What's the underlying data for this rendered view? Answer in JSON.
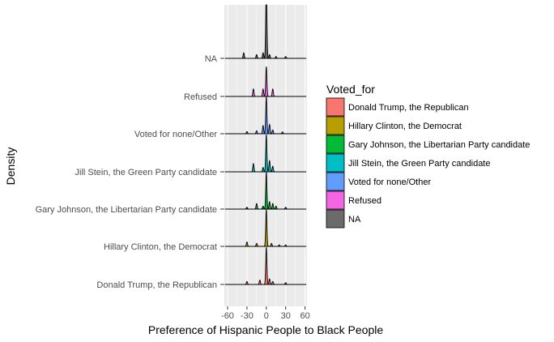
{
  "chart_data": {
    "type": "area",
    "variant": "ridgeline-density",
    "xlabel": "Preference of Hispanic People to Black People",
    "ylabel": "Density",
    "xlim": [
      -65,
      63
    ],
    "x_ticks": [
      -60,
      -30,
      0,
      30,
      60
    ],
    "x_tick_labels": [
      "-60",
      "-30",
      "0",
      "30",
      "60"
    ],
    "grid": true,
    "legend_position": "right",
    "legend": {
      "title": "Voted_for",
      "entries": [
        {
          "label": "Donald Trump, the Republican",
          "color": "#F8766D"
        },
        {
          "label": "Hillary Clinton, the Democrat",
          "color": "#B79F00"
        },
        {
          "label": "Gary Johnson, the Libertarian Party candidate",
          "color": "#00BA38"
        },
        {
          "label": "Jill Stein, the Green Party candidate",
          "color": "#00BFC4"
        },
        {
          "label": "Voted for none/Other",
          "color": "#619CFF"
        },
        {
          "label": "Refused",
          "color": "#F564E3"
        },
        {
          "label": "NA",
          "color": "#6B6B6B"
        }
      ]
    },
    "series": [
      {
        "category": "Donald Trump, the Republican",
        "color": "#F8766D",
        "peaks": [
          [
            -30,
            0.08
          ],
          [
            -10,
            0.12
          ],
          [
            0,
            1.0
          ],
          [
            5,
            0.15
          ],
          [
            10,
            0.08
          ],
          [
            30,
            0.05
          ]
        ]
      },
      {
        "category": "Hillary Clinton, the Democrat",
        "color": "#B79F00",
        "peaks": [
          [
            -30,
            0.12
          ],
          [
            -15,
            0.08
          ],
          [
            0,
            1.0
          ],
          [
            8,
            0.08
          ],
          [
            20,
            0.04
          ],
          [
            30,
            0.04
          ]
        ]
      },
      {
        "category": "Gary Johnson, the Libertarian Party candidate",
        "color": "#00BA38",
        "peaks": [
          [
            -30,
            0.05
          ],
          [
            -15,
            0.15
          ],
          [
            -5,
            0.08
          ],
          [
            0,
            1.0
          ],
          [
            5,
            0.2
          ],
          [
            10,
            0.15
          ],
          [
            15,
            0.08
          ],
          [
            30,
            0.05
          ]
        ]
      },
      {
        "category": "Jill Stein, the Green Party candidate",
        "color": "#00BFC4",
        "peaks": [
          [
            -20,
            0.22
          ],
          [
            -5,
            0.12
          ],
          [
            0,
            1.0
          ],
          [
            5,
            0.3
          ],
          [
            10,
            0.15
          ]
        ]
      },
      {
        "category": "Voted for none/Other",
        "color": "#619CFF",
        "peaks": [
          [
            -30,
            0.06
          ],
          [
            -15,
            0.08
          ],
          [
            -5,
            0.22
          ],
          [
            0,
            1.0
          ],
          [
            5,
            0.25
          ],
          [
            10,
            0.1
          ],
          [
            25,
            0.05
          ]
        ]
      },
      {
        "category": "Refused",
        "color": "#F564E3",
        "peaks": [
          [
            -20,
            0.2
          ],
          [
            -5,
            0.2
          ],
          [
            0,
            0.8
          ],
          [
            10,
            0.2
          ]
        ]
      },
      {
        "category": "NA",
        "color": "#6B6B6B",
        "peaks": [
          [
            -35,
            0.15
          ],
          [
            -15,
            0.1
          ],
          [
            -5,
            0.15
          ],
          [
            0,
            2.0
          ],
          [
            5,
            0.1
          ],
          [
            15,
            0.05
          ],
          [
            30,
            0.05
          ]
        ]
      }
    ]
  }
}
